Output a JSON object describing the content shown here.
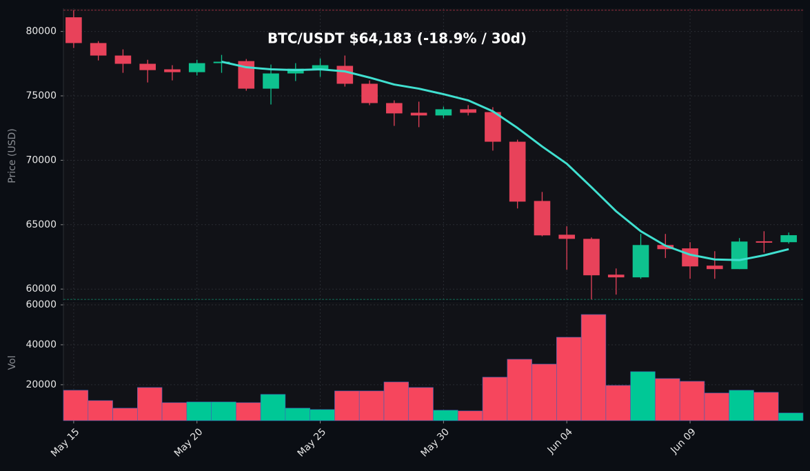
{
  "chart_data": {
    "type": "candlestick",
    "title": "BTC/USDT   $64,183   (-18.9% / 30d)",
    "categories": [
      "May 15",
      null,
      null,
      null,
      null,
      "May 20",
      null,
      null,
      null,
      null,
      "May 25",
      null,
      null,
      null,
      null,
      "May 30",
      null,
      null,
      null,
      null,
      "Jun 04",
      null,
      null,
      null,
      null,
      "Jun 09",
      null,
      null,
      null,
      null
    ],
    "open": [
      81100,
      79100,
      78130,
      77490,
      77060,
      76840,
      77540,
      77700,
      75560,
      76740,
      77060,
      77330,
      75940,
      74440,
      73690,
      73480,
      73960,
      73740,
      71440,
      66840,
      64220,
      63900,
      61120,
      60910,
      63420,
      63160,
      61820,
      61550,
      63710,
      63640
    ],
    "high": [
      81650,
      79250,
      78610,
      77800,
      77380,
      77800,
      78180,
      77860,
      77430,
      77540,
      77910,
      78130,
      76200,
      74650,
      74550,
      74170,
      74280,
      74120,
      71600,
      67540,
      64870,
      64010,
      61600,
      64280,
      64280,
      63640,
      62940,
      63960,
      64490,
      64390
    ],
    "low": [
      78717,
      77750,
      76790,
      76040,
      76200,
      76580,
      76790,
      75400,
      74330,
      76150,
      76470,
      75720,
      74280,
      72670,
      72570,
      73260,
      73480,
      70750,
      66260,
      64100,
      61500,
      59200,
      59570,
      60800,
      62410,
      60800,
      60800,
      61550,
      62830,
      63530
    ],
    "close": [
      79100,
      78130,
      77490,
      77000,
      76840,
      77540,
      77650,
      75560,
      76740,
      77110,
      77380,
      75940,
      74440,
      73640,
      73480,
      73960,
      73690,
      71440,
      66790,
      64170,
      63900,
      61070,
      60910,
      63420,
      63100,
      61760,
      61550,
      63690,
      63660,
      64183
    ],
    "up_color": "#0ec28f",
    "down_color": "#e8425a",
    "ma": {
      "color": "#40e0d0",
      "values": [
        null,
        null,
        null,
        null,
        null,
        null,
        77650,
        77220,
        77060,
        77000,
        77060,
        76900,
        76420,
        75880,
        75560,
        75130,
        74650,
        73800,
        72510,
        71070,
        69730,
        67910,
        66040,
        64490,
        63370,
        62670,
        62300,
        62250,
        62620,
        63100
      ]
    },
    "ylabel": "Price (USD)",
    "ylim": [
      59100,
      81800
    ],
    "yticks": [
      60000,
      65000,
      70000,
      75000,
      80000
    ],
    "grid": true,
    "volume": {
      "ylabel": "Vol",
      "values": [
        17240,
        12070,
        8280,
        18620,
        11030,
        11380,
        11380,
        11030,
        15170,
        8280,
        7590,
        16900,
        16900,
        21380,
        18620,
        7240,
        6900,
        23790,
        32760,
        30340,
        43790,
        55170,
        19660,
        26550,
        23100,
        21720,
        15860,
        17240,
        16210,
        5860
      ],
      "ylim": [
        2000,
        61400
      ],
      "yticks": [
        20000,
        40000,
        60000
      ]
    }
  }
}
